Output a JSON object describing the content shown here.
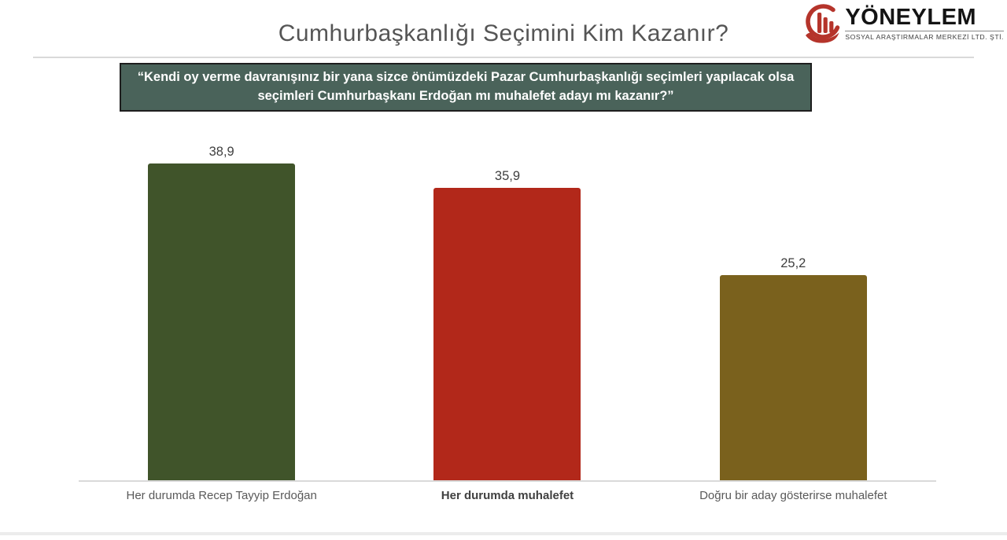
{
  "header": {
    "title": "Cumhurbaşkanlığı Seçimini Kim Kazanır?",
    "logo": {
      "name": "YÖNEYLEM",
      "subtitle": "SOSYAL ARAŞTIRMALAR MERKEZİ LTD. ŞTİ.",
      "icon": "hand-holding-bar-chart-icon",
      "accent_color": "#b5342b"
    }
  },
  "question_box": {
    "text": "“Kendi oy verme davranışınız bir yana sizce önümüzdeki Pazar Cumhurbaşkanlığı seçimleri yapılacak olsa seçimleri Cumhurbaşkanı Erdoğan mı muhalefet adayı mı kazanır?”",
    "background": "#4a635a",
    "text_color": "#ffffff"
  },
  "chart_data": {
    "type": "bar",
    "title": "Cumhurbaşkanlığı Seçimini Kim Kazanır?",
    "categories": [
      "Her durumda Recep Tayyip Erdoğan",
      "Her durumda muhalefet",
      "Doğru bir aday gösterirse muhalefet"
    ],
    "values": [
      38.9,
      35.9,
      25.2
    ],
    "value_labels": [
      "38,9",
      "35,9",
      "25,2"
    ],
    "colors": [
      "#40542a",
      "#b2281a",
      "#7a611d"
    ],
    "category_emphasis": [
      false,
      true,
      false
    ],
    "xlabel": "",
    "ylabel": "",
    "ylim": [
      0,
      42
    ],
    "grid": false,
    "legend": "none",
    "unit": "percent",
    "value_format": "comma-decimal"
  }
}
